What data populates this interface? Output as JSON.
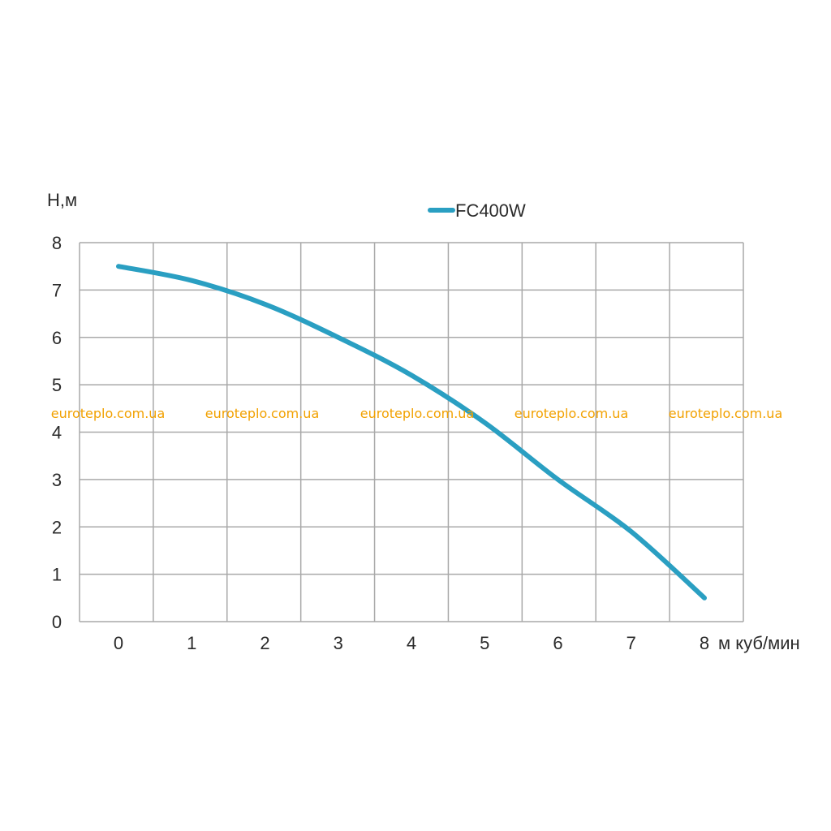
{
  "chart_data": {
    "type": "line",
    "xlabel": "м куб/мин",
    "ylabel": "Н,м",
    "xlim": [
      0,
      8
    ],
    "ylim": [
      0,
      8
    ],
    "x_ticks": [
      "0",
      "1",
      "2",
      "3",
      "4",
      "5",
      "6",
      "7",
      "8"
    ],
    "y_ticks": [
      "0",
      "1",
      "2",
      "3",
      "4",
      "5",
      "6",
      "7",
      "8"
    ],
    "grid": true,
    "legend_position": "top-center",
    "series": [
      {
        "name": "FC400W",
        "color": "#2a9fc2",
        "x": [
          0,
          1,
          2,
          3,
          4,
          5,
          6,
          7,
          8
        ],
        "y": [
          7.5,
          7.2,
          6.7,
          6.0,
          5.2,
          4.2,
          3.0,
          1.9,
          0.5
        ]
      }
    ]
  },
  "watermarks": [
    "euroteplo.com.ua",
    "euroteplo.com.ua",
    "euroteplo.com.ua",
    "euroteplo.com.ua",
    "euroteplo.com.ua"
  ]
}
